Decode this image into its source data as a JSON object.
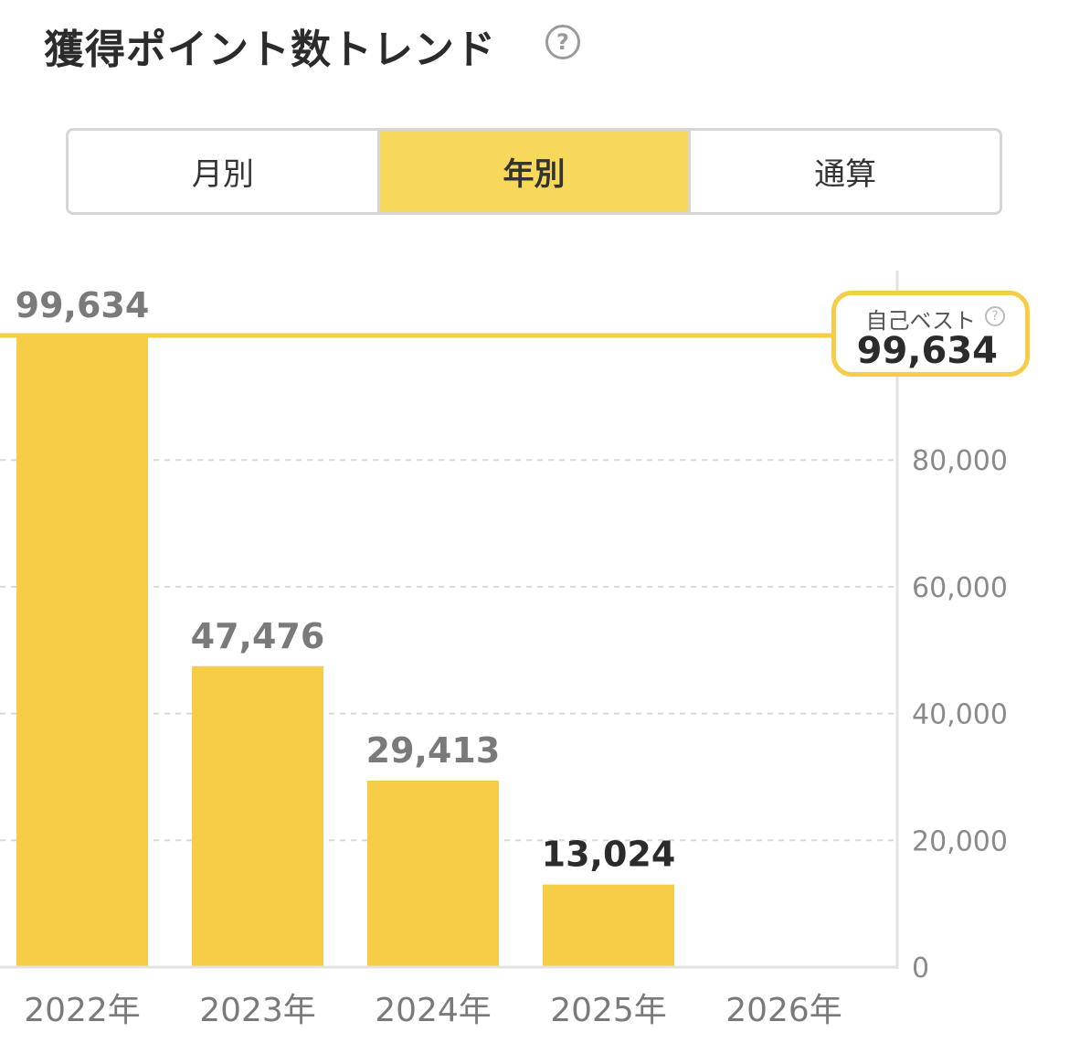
{
  "header": {
    "title": "獲得ポイント数トレンド",
    "help_icon": "?"
  },
  "tabs": [
    {
      "label": "月別",
      "active": false
    },
    {
      "label": "年別",
      "active": true
    },
    {
      "label": "通算",
      "active": false
    }
  ],
  "best": {
    "label": "自己ベスト",
    "value": "99,634",
    "help_icon": "?"
  },
  "colors": {
    "bar": "#f5cd47",
    "accent": "#f5cd47",
    "tab_active": "#f8d85b"
  },
  "chart_data": {
    "type": "bar",
    "categories": [
      "2022年",
      "2023年",
      "2024年",
      "2025年",
      "2026年"
    ],
    "values": [
      99634,
      47476,
      29413,
      13024,
      null
    ],
    "value_labels": [
      "99,634",
      "47,476",
      "29,413",
      "13,024",
      ""
    ],
    "ylim": [
      0,
      100000
    ],
    "y_ticks": [
      0,
      20000,
      40000,
      60000,
      80000
    ],
    "y_tick_labels": [
      "0",
      "20,000",
      "40,000",
      "60,000",
      "80,000"
    ],
    "y_axis_position": "right",
    "grid": true,
    "reference_line": {
      "label": "自己ベスト",
      "value": 99634
    }
  }
}
